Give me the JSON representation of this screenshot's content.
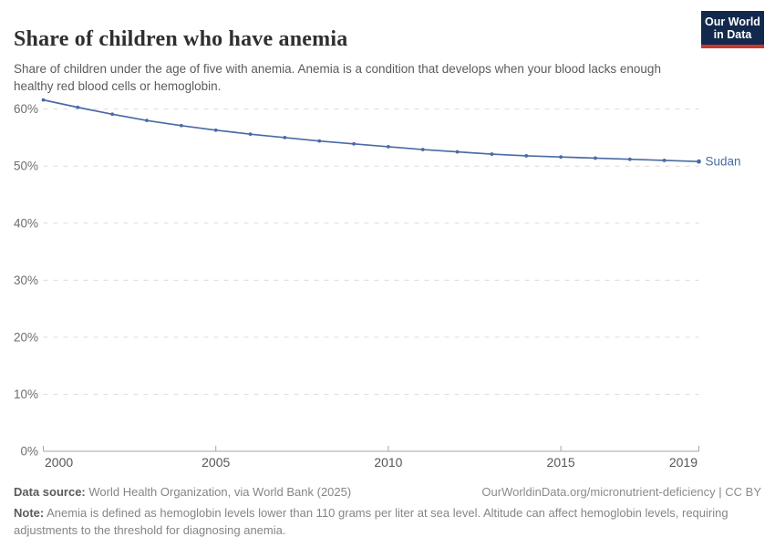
{
  "header": {
    "title": "Share of children who have anemia",
    "subtitle": "Share of children under the age of five with anemia. Anemia is a condition that develops when your blood lacks enough healthy red blood cells or hemoglobin.",
    "logo": {
      "line1": "Our World",
      "line2": "in Data"
    }
  },
  "chart_data": {
    "type": "line",
    "title": "Share of children who have anemia",
    "xlabel": "",
    "ylabel": "",
    "xlim": [
      2000,
      2019
    ],
    "ylim": [
      0,
      63.3
    ],
    "x_ticks": [
      2000,
      2005,
      2010,
      2015,
      2019
    ],
    "y_ticks": [
      0,
      10,
      20,
      30,
      40,
      50,
      60
    ],
    "y_tick_suffix": "%",
    "grid": "horizontal-dashed",
    "legend_position": "end-of-line",
    "colors": {
      "grid": "#dcdcdc",
      "axis": "#a6a6a6"
    },
    "series": [
      {
        "name": "Sudan",
        "color": "#4a6ba3",
        "x": [
          2000,
          2001,
          2002,
          2003,
          2004,
          2005,
          2006,
          2007,
          2008,
          2009,
          2010,
          2011,
          2012,
          2013,
          2014,
          2015,
          2016,
          2017,
          2018,
          2019
        ],
        "values": [
          61.6,
          60.3,
          59.1,
          58.0,
          57.1,
          56.3,
          55.6,
          55.0,
          54.4,
          53.9,
          53.4,
          52.9,
          52.5,
          52.1,
          51.8,
          51.6,
          51.4,
          51.2,
          51.0,
          50.8
        ]
      }
    ]
  },
  "footer": {
    "data_source_label": "Data source:",
    "data_source_value": "World Health Organization, via World Bank (2025)",
    "link": "OurWorldinData.org/micronutrient-deficiency",
    "license_sep": " | ",
    "license": "CC BY",
    "note_label": "Note:",
    "note_value": "Anemia is defined as hemoglobin levels lower than 110 grams per liter at sea level. Altitude can affect hemoglobin levels, requiring adjustments to the threshold for diagnosing anemia."
  },
  "colors": {
    "accent_blue": "#4a6ba3",
    "logo_navy": "#12294d",
    "logo_red": "#c9372c"
  }
}
